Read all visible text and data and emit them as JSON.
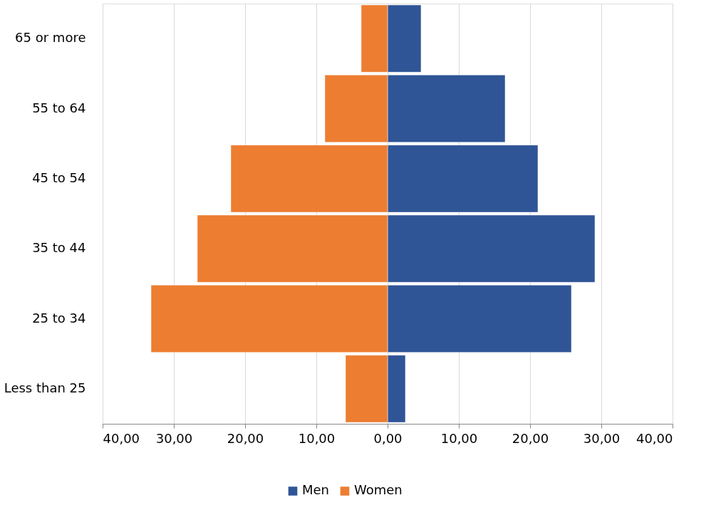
{
  "chart_data": {
    "type": "bar",
    "orientation": "horizontal",
    "stacked": true,
    "categories": [
      "65 or more",
      "55 to 64",
      "45 to 54",
      "35 to 44",
      "25 to 34",
      "Less than 25"
    ],
    "series": [
      {
        "name": "Men",
        "color": "#2f5597",
        "values": [
          4.7,
          16.5,
          21.1,
          29.1,
          25.8,
          2.5
        ]
      },
      {
        "name": "Women",
        "color": "#ed7d31",
        "values": [
          -3.7,
          -8.8,
          -22.0,
          -26.7,
          -33.2,
          -5.9
        ]
      }
    ],
    "xlim": [
      -40,
      40
    ],
    "xticks": [
      {
        "value": -40,
        "label": "40,00"
      },
      {
        "value": -30,
        "label": "30,00"
      },
      {
        "value": -20,
        "label": "20,00"
      },
      {
        "value": -10,
        "label": "10,00"
      },
      {
        "value": 0,
        "label": "0,00"
      },
      {
        "value": 10,
        "label": "10,00"
      },
      {
        "value": 20,
        "label": "20,00"
      },
      {
        "value": 30,
        "label": "30,00"
      },
      {
        "value": 40,
        "label": "40,00"
      }
    ],
    "grid": "x",
    "legend": "bottom"
  }
}
